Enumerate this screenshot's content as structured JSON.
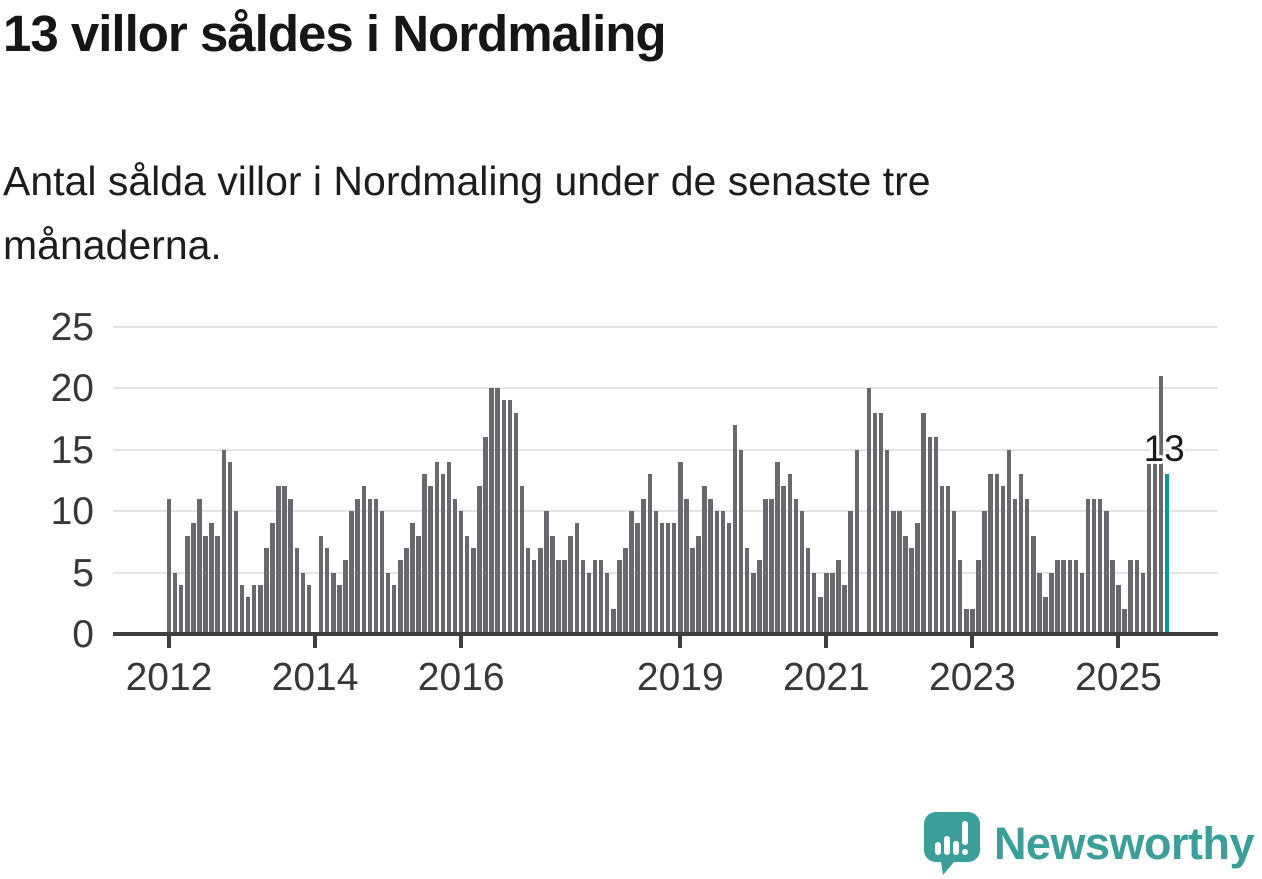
{
  "header": {
    "title": "13 villor såldes i Nordmaling",
    "subtitle": "Antal sålda villor i Nordmaling under de senaste tre månaderna."
  },
  "chart_data": {
    "type": "bar",
    "title": "13 villor såldes i Nordmaling",
    "subtitle": "Antal sålda villor i Nordmaling under de senaste tre månaderna.",
    "xlabel": "",
    "ylabel": "",
    "frequency": "monthly",
    "start_month": "2012-01",
    "end_month": "2025-09",
    "ylim": [
      0,
      25
    ],
    "y_ticks": [
      0,
      5,
      10,
      15,
      20,
      25
    ],
    "x_ticks": [
      {
        "label": "2012",
        "month_index": 0
      },
      {
        "label": "2014",
        "month_index": 24
      },
      {
        "label": "2016",
        "month_index": 48
      },
      {
        "label": "2019",
        "month_index": 84
      },
      {
        "label": "2021",
        "month_index": 108
      },
      {
        "label": "2023",
        "month_index": 132
      },
      {
        "label": "2025",
        "month_index": 156
      }
    ],
    "grid": "horizontal",
    "legend": "none",
    "values": [
      11,
      5,
      4,
      8,
      9,
      11,
      8,
      9,
      8,
      15,
      14,
      10,
      4,
      3,
      4,
      4,
      7,
      9,
      12,
      12,
      11,
      7,
      5,
      4,
      0,
      8,
      7,
      5,
      4,
      6,
      10,
      11,
      12,
      11,
      11,
      10,
      5,
      4,
      6,
      7,
      9,
      8,
      13,
      12,
      14,
      13,
      14,
      11,
      10,
      8,
      7,
      12,
      16,
      20,
      20,
      19,
      19,
      18,
      12,
      7,
      6,
      7,
      10,
      8,
      6,
      6,
      8,
      9,
      6,
      5,
      6,
      6,
      5,
      2,
      6,
      7,
      10,
      9,
      11,
      13,
      10,
      9,
      9,
      9,
      14,
      11,
      7,
      8,
      12,
      11,
      10,
      10,
      9,
      17,
      15,
      7,
      5,
      6,
      11,
      11,
      14,
      12,
      13,
      11,
      10,
      7,
      5,
      3,
      5,
      5,
      6,
      4,
      10,
      15,
      0,
      20,
      18,
      18,
      15,
      10,
      10,
      8,
      7,
      9,
      18,
      16,
      16,
      12,
      12,
      10,
      6,
      2,
      2,
      6,
      10,
      13,
      13,
      12,
      15,
      11,
      13,
      11,
      8,
      5,
      3,
      5,
      6,
      6,
      6,
      6,
      5,
      11,
      11,
      11,
      10,
      6,
      4,
      2,
      6,
      6,
      5,
      14,
      14,
      21,
      13
    ],
    "highlight_index": 164,
    "highlight_value": 13,
    "annotation": {
      "text": "13",
      "index": 164,
      "value": 13
    },
    "colors": {
      "bar": "#68686e",
      "highlight": "#019c95",
      "gridline": "#e4e4e4",
      "axis": "#3f3f3f",
      "tick_label": "#383838"
    }
  },
  "footer": {
    "logo_text": "Newsworthy",
    "logo_icon": "newsworthy-chart-bubble-icon",
    "logo_color": "#3b9e98"
  }
}
